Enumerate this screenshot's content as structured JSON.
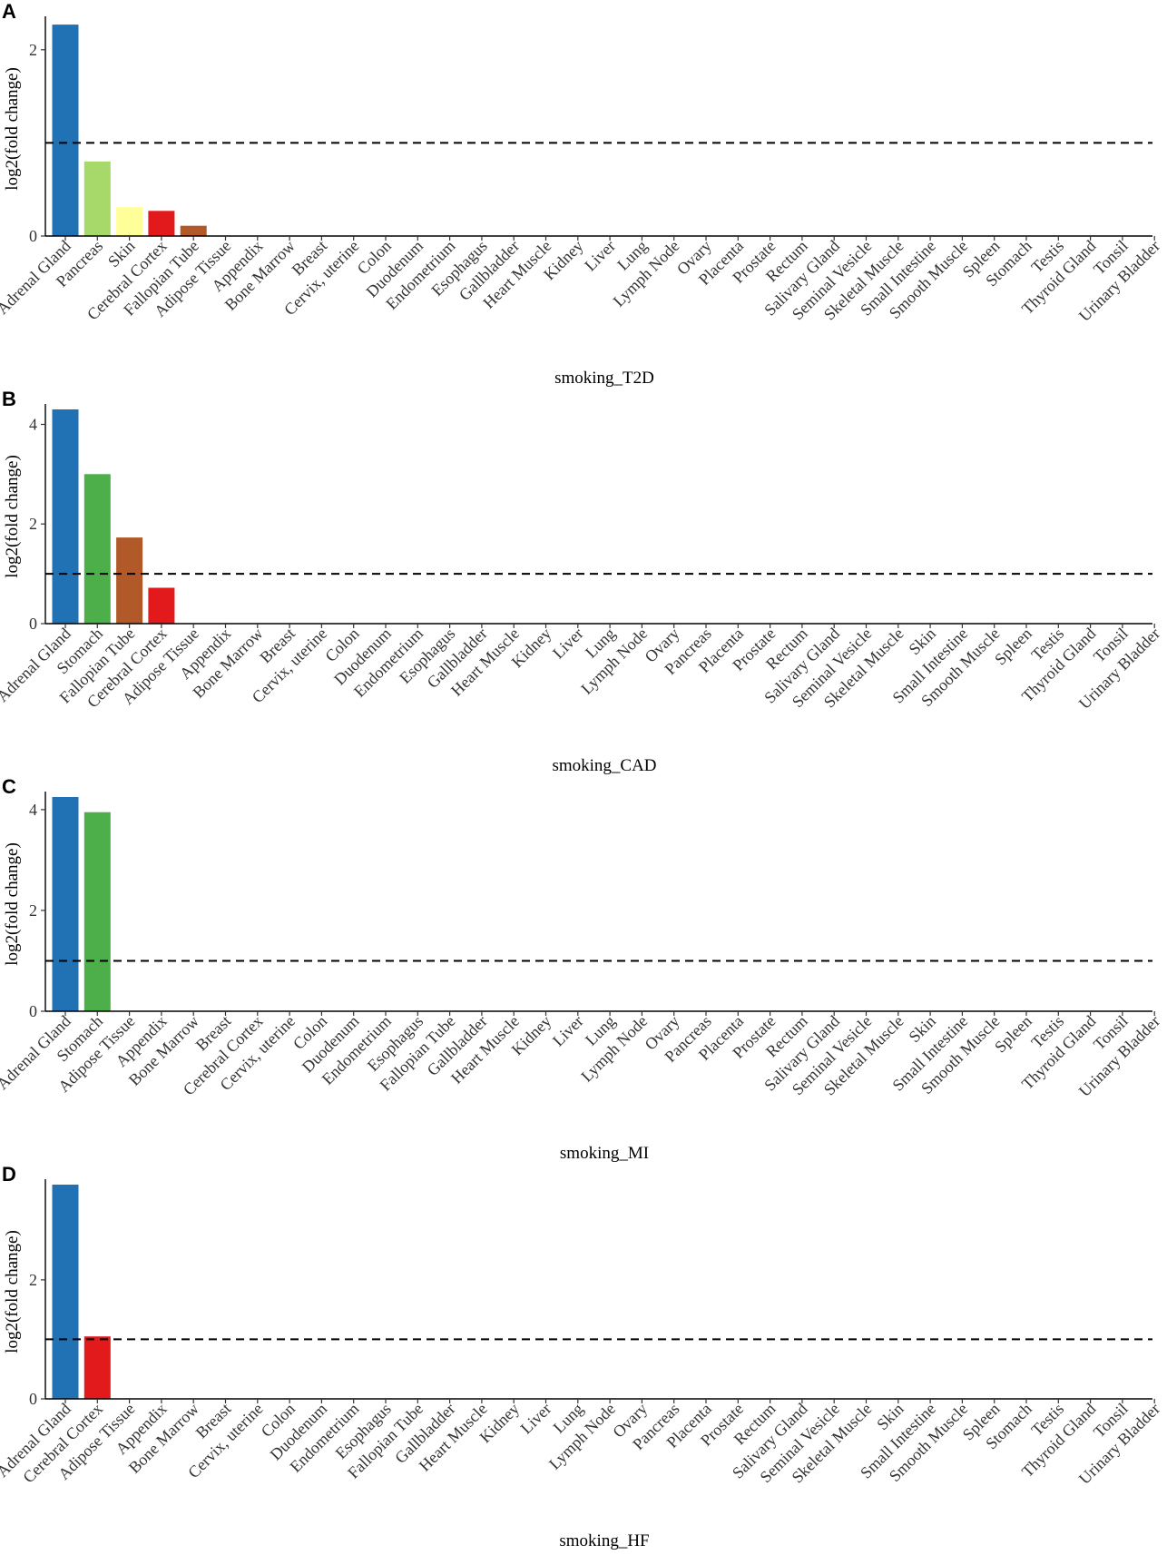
{
  "chart_data": [
    {
      "type": "bar",
      "panel": "A",
      "xlabel": "smoking_T2D",
      "ylabel": "log2(fold change)",
      "ylim": [
        0,
        2.3
      ],
      "yticks": [
        0,
        2
      ],
      "threshold": 1,
      "categories": [
        "Adrenal Gland",
        "Pancreas",
        "Skin",
        "Cerebral Cortex",
        "Fallopian Tube",
        "Adipose Tissue",
        "Appendix",
        "Bone Marrow",
        "Breast",
        "Cervix, uterine",
        "Colon",
        "Duodenum",
        "Endometrium",
        "Esophagus",
        "Gallbladder",
        "Heart Muscle",
        "Kidney",
        "Liver",
        "Lung",
        "Lymph Node",
        "Ovary",
        "Placenta",
        "Prostate",
        "Rectum",
        "Salivary Gland",
        "Seminal Vesicle",
        "Skeletal Muscle",
        "Small Intestine",
        "Smooth Muscle",
        "Spleen",
        "Stomach",
        "Testis",
        "Thyroid Gland",
        "Tonsil",
        "Urinary Bladder"
      ],
      "values": [
        2.27,
        0.8,
        0.31,
        0.27,
        0.11,
        0,
        0,
        0,
        0,
        0,
        0,
        0,
        0,
        0,
        0,
        0,
        0,
        0,
        0,
        0,
        0,
        0,
        0,
        0,
        0,
        0,
        0,
        0,
        0,
        0,
        0,
        0,
        0,
        0,
        0
      ],
      "colors": [
        "#2171b5",
        "#a6d96a",
        "#ffff99",
        "#e31a1c",
        "#b15928"
      ]
    },
    {
      "type": "bar",
      "panel": "B",
      "xlabel": "smoking_CAD",
      "ylabel": "log2(fold change)",
      "ylim": [
        0,
        4.3
      ],
      "yticks": [
        0,
        2,
        4
      ],
      "threshold": 1,
      "categories": [
        "Adrenal Gland",
        "Stomach",
        "Fallopian Tube",
        "Cerebral Cortex",
        "Adipose Tissue",
        "Appendix",
        "Bone Marrow",
        "Breast",
        "Cervix, uterine",
        "Colon",
        "Duodenum",
        "Endometrium",
        "Esophagus",
        "Gallbladder",
        "Heart Muscle",
        "Kidney",
        "Liver",
        "Lung",
        "Lymph Node",
        "Ovary",
        "Pancreas",
        "Placenta",
        "Prostate",
        "Rectum",
        "Salivary Gland",
        "Seminal Vesicle",
        "Skeletal Muscle",
        "Skin",
        "Small Intestine",
        "Smooth Muscle",
        "Spleen",
        "Testis",
        "Thyroid Gland",
        "Tonsil",
        "Urinary Bladder"
      ],
      "values": [
        4.3,
        3.0,
        1.73,
        0.72,
        0,
        0,
        0,
        0,
        0,
        0,
        0,
        0,
        0,
        0,
        0,
        0,
        0,
        0,
        0,
        0,
        0,
        0,
        0,
        0,
        0,
        0,
        0,
        0,
        0,
        0,
        0,
        0,
        0,
        0,
        0
      ],
      "colors": [
        "#2171b5",
        "#4daf4a",
        "#b15928",
        "#e31a1c"
      ]
    },
    {
      "type": "bar",
      "panel": "C",
      "xlabel": "smoking_MI",
      "ylabel": "log2(fold change)",
      "ylim": [
        0,
        4.25
      ],
      "yticks": [
        0,
        2,
        4
      ],
      "threshold": 1,
      "categories": [
        "Adrenal Gland",
        "Stomach",
        "Adipose Tissue",
        "Appendix",
        "Bone Marrow",
        "Breast",
        "Cerebral Cortex",
        "Cervix, uterine",
        "Colon",
        "Duodenum",
        "Endometrium",
        "Esophagus",
        "Fallopian Tube",
        "Gallbladder",
        "Heart Muscle",
        "Kidney",
        "Liver",
        "Lung",
        "Lymph Node",
        "Ovary",
        "Pancreas",
        "Placenta",
        "Prostate",
        "Rectum",
        "Salivary Gland",
        "Seminal Vesicle",
        "Skeletal Muscle",
        "Skin",
        "Small Intestine",
        "Smooth Muscle",
        "Spleen",
        "Testis",
        "Thyroid Gland",
        "Tonsil",
        "Urinary Bladder"
      ],
      "values": [
        4.25,
        3.95,
        0,
        0,
        0,
        0,
        0,
        0,
        0,
        0,
        0,
        0,
        0,
        0,
        0,
        0,
        0,
        0,
        0,
        0,
        0,
        0,
        0,
        0,
        0,
        0,
        0,
        0,
        0,
        0,
        0,
        0,
        0,
        0,
        0
      ],
      "colors": [
        "#2171b5",
        "#4daf4a"
      ]
    },
    {
      "type": "bar",
      "panel": "D",
      "xlabel": "smoking_HF",
      "ylabel": "log2(fold change)",
      "ylim": [
        0,
        3.6
      ],
      "yticks": [
        0,
        2
      ],
      "threshold": 1,
      "categories": [
        "Adrenal Gland",
        "Cerebral Cortex",
        "Adipose Tissue",
        "Appendix",
        "Bone Marrow",
        "Breast",
        "Cervix, uterine",
        "Colon",
        "Duodenum",
        "Endometrium",
        "Esophagus",
        "Fallopian Tube",
        "Gallbladder",
        "Heart Muscle",
        "Kidney",
        "Liver",
        "Lung",
        "Lymph Node",
        "Ovary",
        "Pancreas",
        "Placenta",
        "Prostate",
        "Rectum",
        "Salivary Gland",
        "Seminal Vesicle",
        "Skeletal Muscle",
        "Skin",
        "Small Intestine",
        "Smooth Muscle",
        "Spleen",
        "Stomach",
        "Testis",
        "Thyroid Gland",
        "Tonsil",
        "Urinary Bladder"
      ],
      "values": [
        3.6,
        1.05,
        0,
        0,
        0,
        0,
        0,
        0,
        0,
        0,
        0,
        0,
        0,
        0,
        0,
        0,
        0,
        0,
        0,
        0,
        0,
        0,
        0,
        0,
        0,
        0,
        0,
        0,
        0,
        0,
        0,
        0,
        0,
        0,
        0
      ],
      "colors": [
        "#2171b5",
        "#e31a1c"
      ]
    }
  ]
}
